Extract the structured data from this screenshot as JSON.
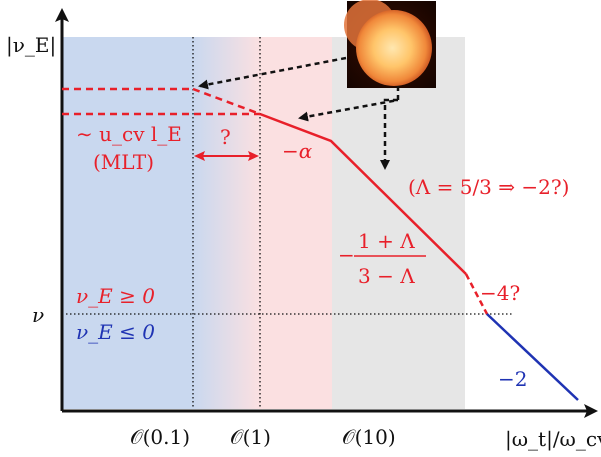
{
  "axes": {
    "y_label": "|ν_E|",
    "x_label": "|ω_t|/ω_cv",
    "nu_tick": "ν",
    "x_ticks": [
      "𝒪(0.1)",
      "𝒪(1)",
      "𝒪(10)"
    ]
  },
  "annotations": {
    "mlt_scale": "∼ u_cv l_E",
    "mlt_name": "(MLT)",
    "transition_question": "?",
    "slope_alpha": "−α",
    "lambda_note": "(Λ = 5/3 ⇒ −2?)",
    "slope_lambda_prefix": "−",
    "slope_lambda_num": "1 + Λ",
    "slope_lambda_den": "3 − Λ",
    "slope_minus4": "−4?",
    "slope_minus2": "−2",
    "sign_positive": "ν_E ≥ 0",
    "sign_negative": "ν_E ≤ 0"
  },
  "colors": {
    "red": "#e8202a",
    "blue": "#1f33b3",
    "blue_region": "#c9d8ef",
    "red_region": "#fbe0e1",
    "grey_region": "#e6e6e6",
    "sun_core": "#ffd27a",
    "sun_edge": "#d4571b"
  },
  "icons": {
    "sun": "sun-image-icon"
  }
}
